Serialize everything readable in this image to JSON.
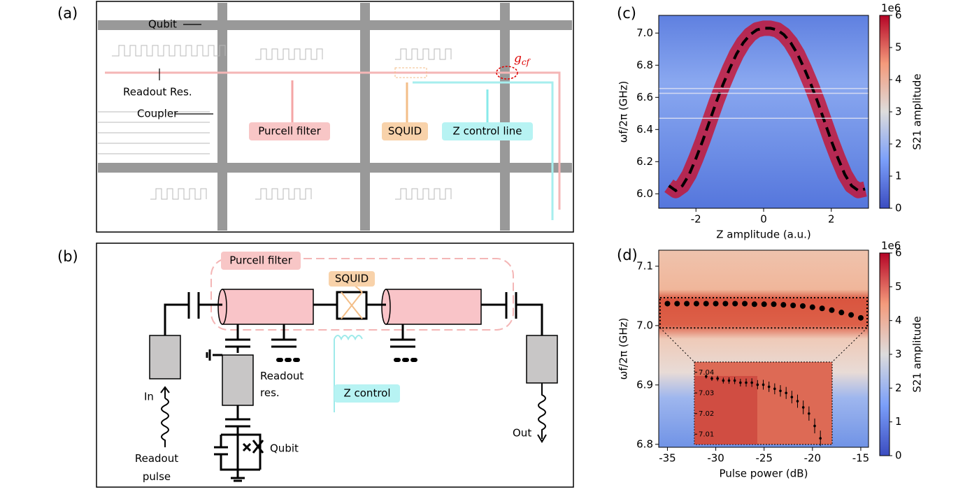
{
  "panels": {
    "a": {
      "label": "(a)",
      "qubit": "Qubit",
      "readout": "Readout Res.",
      "coupler": "Coupler",
      "purcell": "Purcell filter",
      "squid": "SQUID",
      "zline": "Z control line",
      "gcf": "gcf"
    },
    "b": {
      "label": "(b)",
      "purcell": "Purcell filter",
      "squid": "SQUID",
      "readout": "Readout res.",
      "zcontrol": "Z control",
      "in": "In",
      "pulse": "Readout pulse",
      "qubit": "Qubit",
      "out": "Out"
    }
  },
  "chart_data": [
    {
      "type": "line",
      "label": "(c)",
      "xlabel": "Z amplitude (a.u.)",
      "ylabel": "ωf/2π (GHz)",
      "xlim": [
        -3.1,
        3.1
      ],
      "xticks": [
        -2,
        0,
        2
      ],
      "ylim": [
        5.91,
        7.11
      ],
      "yticks": [
        {
          "value": 6,
          "label": "6.0"
        },
        6.2,
        6.4,
        6.6,
        6.8,
        {
          "value": 7,
          "label": "7.0"
        }
      ],
      "x": [
        -2.8,
        -2.6,
        -2.4,
        -2.2,
        -2.0,
        -1.8,
        -1.6,
        -1.4,
        -1.2,
        -1.0,
        -0.8,
        -0.6,
        -0.4,
        -0.2,
        0,
        0.2,
        0.4,
        0.6,
        0.8,
        1.0,
        1.2,
        1.4,
        1.6,
        1.8,
        2.0,
        2.2,
        2.4,
        2.6,
        2.8,
        3.0
      ],
      "values": [
        6.05,
        6.02,
        6.05,
        6.12,
        6.22,
        6.33,
        6.45,
        6.57,
        6.68,
        6.78,
        6.87,
        6.94,
        6.99,
        7.02,
        7.03,
        7.03,
        7.02,
        6.99,
        6.94,
        6.87,
        6.78,
        6.68,
        6.57,
        6.45,
        6.33,
        6.22,
        6.12,
        6.05,
        6.02,
        6.03
      ],
      "color": "#000000",
      "colorbar": {
        "label": "S21 amplitude",
        "scale": "1e6",
        "lim": [
          0,
          6
        ],
        "ticks": [
          0,
          1,
          2,
          3,
          4,
          5,
          6
        ]
      }
    },
    {
      "type": "scatter",
      "label": "(d)",
      "xlabel": "Pulse power (dB)",
      "ylabel": "ωf/2π (GHz)",
      "xlim": [
        -35.9,
        -14.2
      ],
      "xticks": [
        -35,
        -30,
        -25,
        -20,
        -15
      ],
      "ylim": [
        6.795,
        7.127
      ],
      "yticks": [
        6.8,
        6.9,
        {
          "value": 7,
          "label": "7.0"
        },
        7.1
      ],
      "x": [
        -35,
        -34,
        -33,
        -32,
        -31,
        -30,
        -29,
        -28,
        -27,
        -26,
        -25,
        -24,
        -23,
        -22,
        -21,
        -20,
        -19,
        -18,
        -17,
        -16,
        -15
      ],
      "values": [
        7.037,
        7.037,
        7.037,
        7.037,
        7.037,
        7.037,
        7.037,
        7.037,
        7.037,
        7.036,
        7.036,
        7.036,
        7.035,
        7.034,
        7.033,
        7.031,
        7.029,
        7.026,
        7.022,
        7.018,
        7.013
      ],
      "color": "#000000",
      "inset": {
        "ylim": [
          7.005,
          7.045
        ],
        "yticks": [
          7.01,
          7.02,
          7.03,
          7.04
        ],
        "xlim": [
          -30.5,
          -17.5
        ],
        "x": [
          -30,
          -29.4,
          -28.8,
          -28.2,
          -27.6,
          -27,
          -26.4,
          -25.8,
          -25.2,
          -24.6,
          -24,
          -23.4,
          -22.8,
          -22.2,
          -21.6,
          -21,
          -20.4,
          -19.8,
          -19.2,
          -18.6,
          -18
        ],
        "values": [
          7.038,
          7.037,
          7.037,
          7.036,
          7.036,
          7.036,
          7.035,
          7.035,
          7.035,
          7.034,
          7.034,
          7.033,
          7.032,
          7.031,
          7.03,
          7.028,
          7.026,
          7.023,
          7.02,
          7.014,
          7.008
        ]
      },
      "colorbar": {
        "label": "S21 amplitude",
        "scale": "1e6",
        "lim": [
          0,
          6
        ],
        "ticks": [
          0,
          1,
          2,
          3,
          4,
          5,
          6
        ]
      }
    }
  ]
}
